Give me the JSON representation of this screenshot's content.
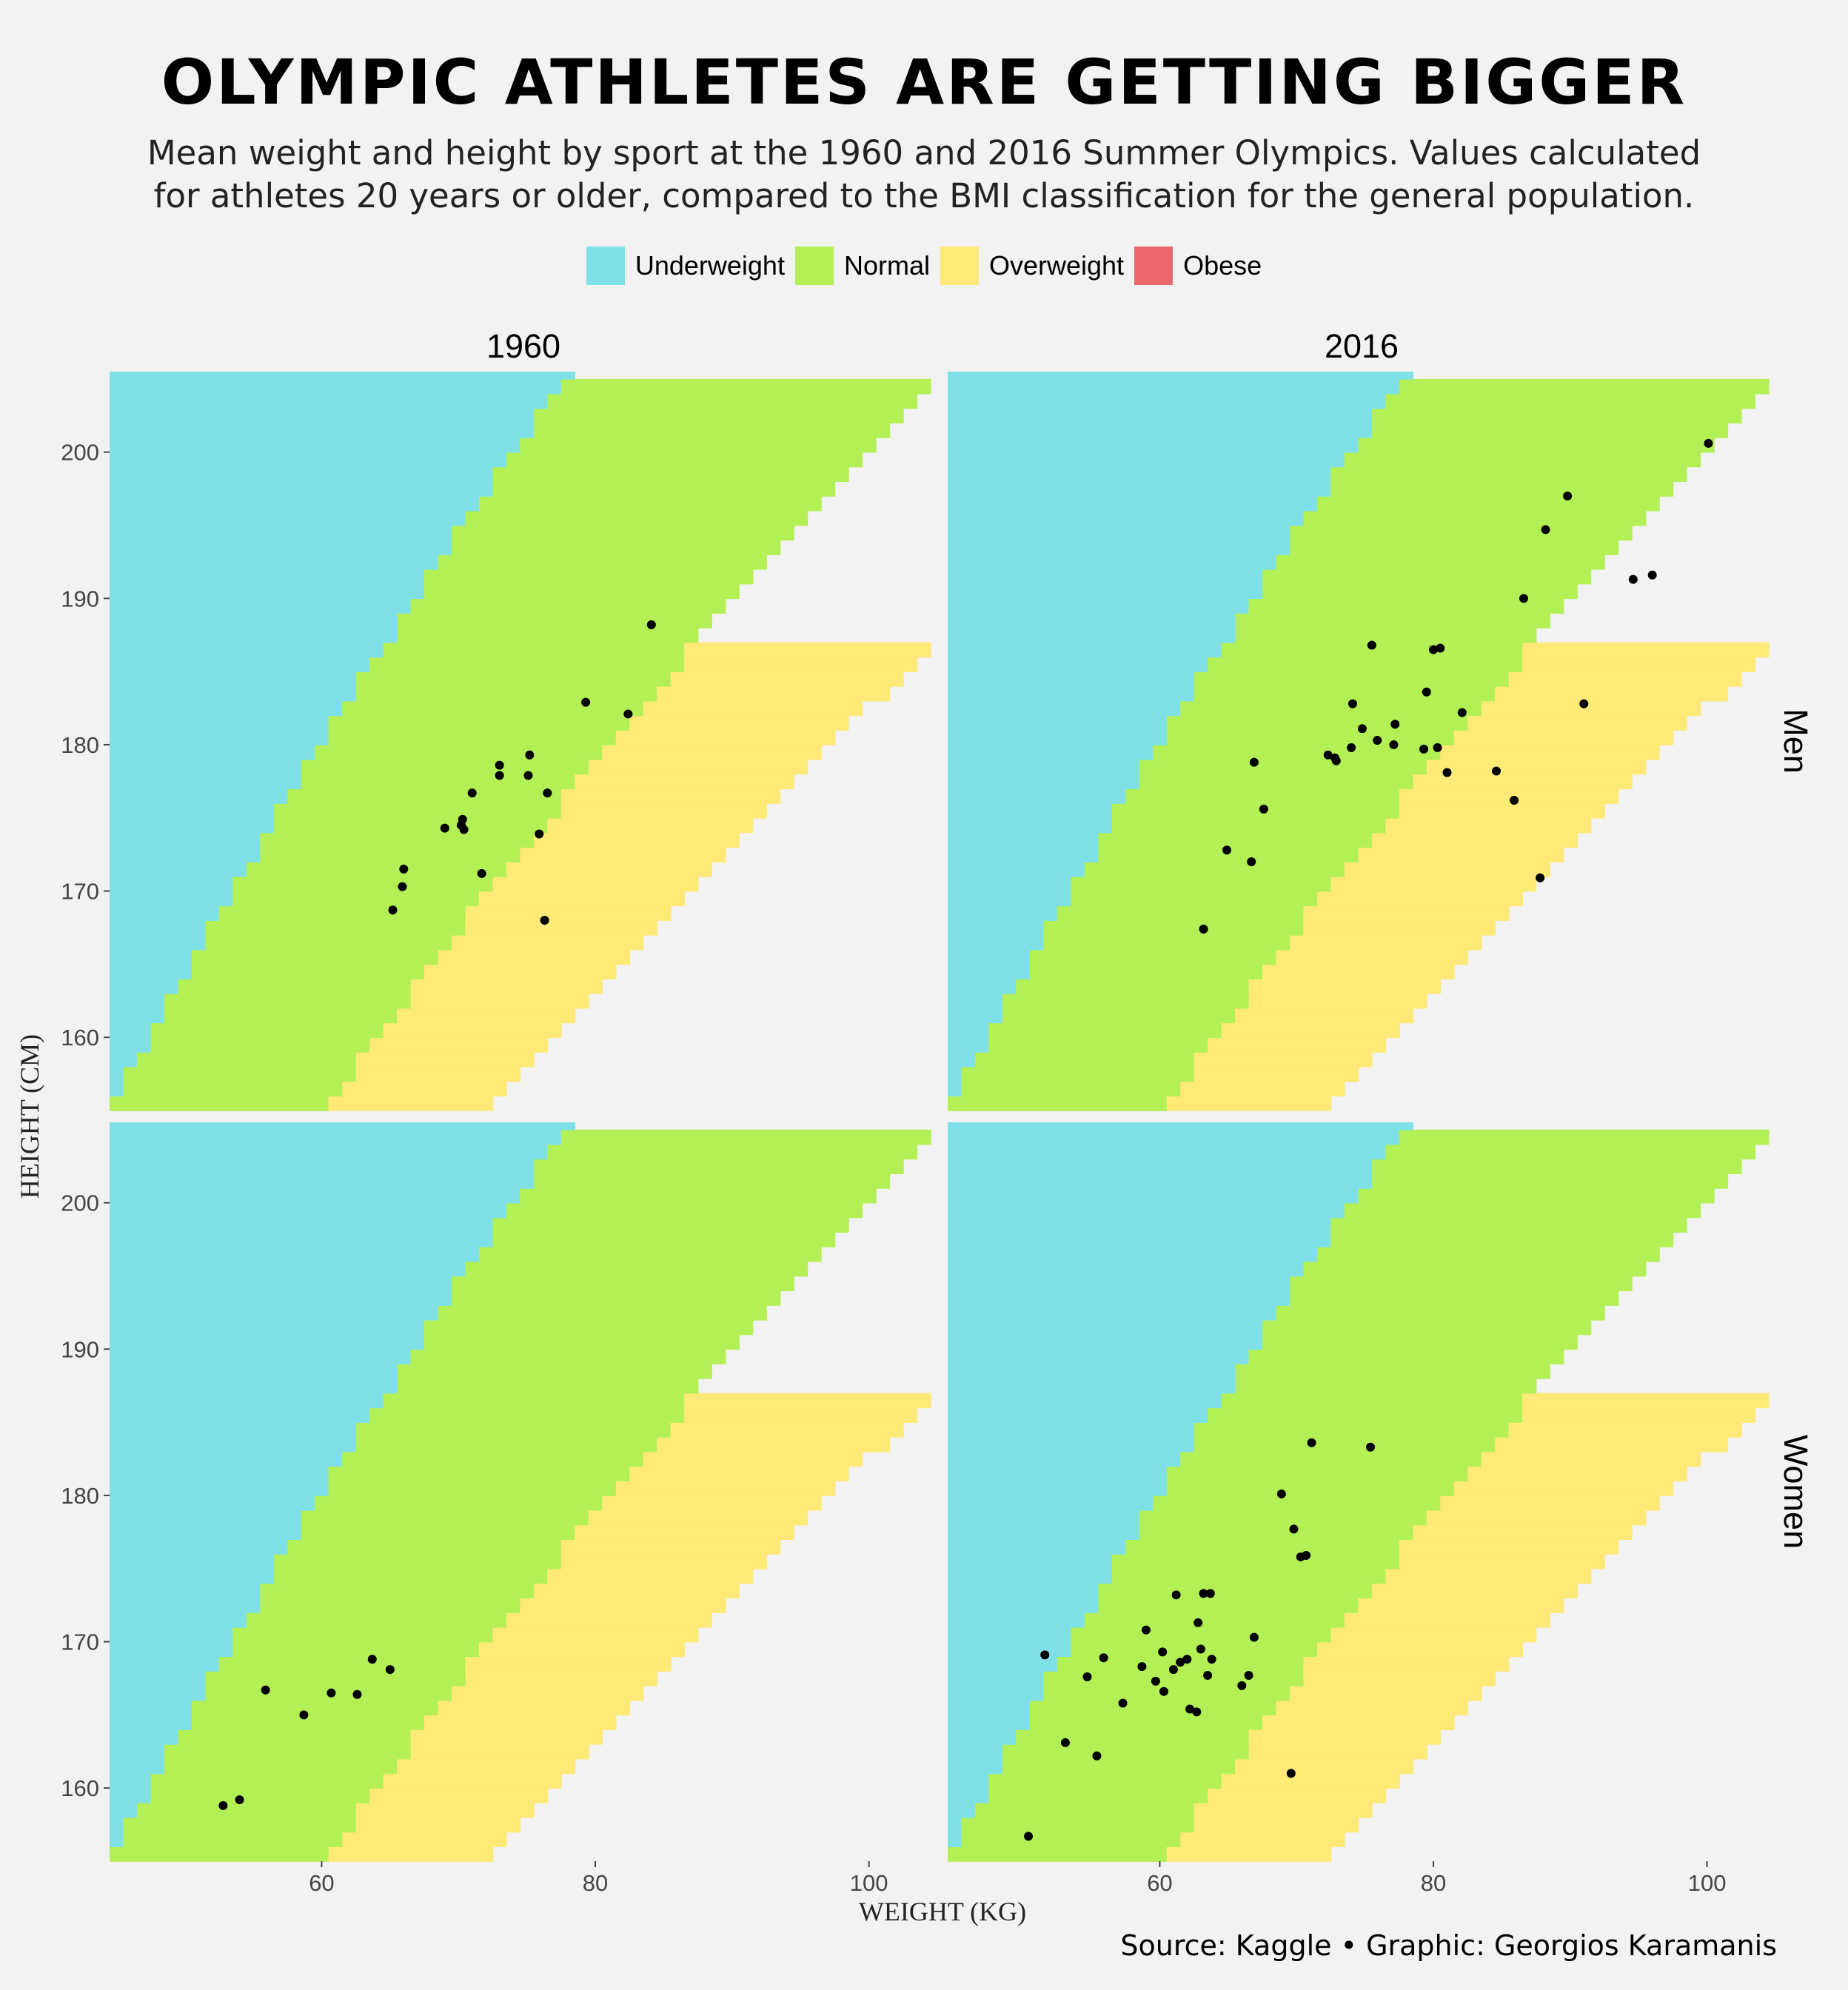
{
  "title": "OLYMPIC ATHLETES ARE GETTING BIGGER",
  "subtitle_line1": "Mean weight and height by sport at the 1960 and 2016 Summer Olympics. Values calculated",
  "subtitle_line2": "for athletes 20 years or older, compared to the BMI classification for the general population.",
  "source": "Source: Kaggle • Graphic: Georgios Karamanis",
  "legend": [
    {
      "label": "Underweight",
      "color": "#80e0e8"
    },
    {
      "label": "Normal",
      "color": "#b2f055"
    },
    {
      "label": "Overweight",
      "color": "#ffe977"
    },
    {
      "label": "Obese",
      "color": "#ea686e"
    }
  ],
  "chart_data": {
    "type": "scatter",
    "xlabel": "WEIGHT (KG)",
    "ylabel": "HEIGHT (CM)",
    "xlim": [
      44.5,
      105
    ],
    "ylim": [
      155,
      205.5
    ],
    "x_ticks": [
      60,
      80,
      100
    ],
    "y_ticks": [
      160,
      170,
      180,
      190,
      200
    ],
    "columns": [
      "1960",
      "2016"
    ],
    "rows": [
      "Men",
      "Women"
    ],
    "background": "BMI classification: Underweight < 18.5, Normal 18.5–25, Overweight 25–30, Obese ≥ 30",
    "bmi_thresholds": [
      18.5,
      25,
      30
    ],
    "panels": [
      {
        "column": "1960",
        "row": "Men",
        "points": [
          [
            65.2,
            168.7
          ],
          [
            65.9,
            170.3
          ],
          [
            66,
            171.5
          ],
          [
            69,
            174.3
          ],
          [
            70.2,
            174.5
          ],
          [
            70.3,
            174.9
          ],
          [
            70.4,
            174.2
          ],
          [
            71,
            176.7
          ],
          [
            71.7,
            171.2
          ],
          [
            73,
            177.9
          ],
          [
            73,
            178.6
          ],
          [
            75.1,
            177.9
          ],
          [
            75.2,
            179.3
          ],
          [
            75.9,
            173.9
          ],
          [
            76.3,
            168
          ],
          [
            76.5,
            176.7
          ],
          [
            79.3,
            182.9
          ],
          [
            82.4,
            182.1
          ],
          [
            84.1,
            188.2
          ]
        ]
      },
      {
        "column": "2016",
        "row": "Men",
        "points": [
          [
            63.2,
            167.4
          ],
          [
            64.9,
            172.8
          ],
          [
            66.7,
            172
          ],
          [
            66.9,
            178.8
          ],
          [
            67.6,
            175.6
          ],
          [
            72.3,
            179.3
          ],
          [
            72.8,
            179.1
          ],
          [
            72.9,
            178.9
          ],
          [
            74,
            179.8
          ],
          [
            74.1,
            182.8
          ],
          [
            74.8,
            181.1
          ],
          [
            75.5,
            186.8
          ],
          [
            75.9,
            180.3
          ],
          [
            77.1,
            180
          ],
          [
            77.2,
            181.4
          ],
          [
            79.3,
            179.7
          ],
          [
            79.5,
            183.6
          ],
          [
            80,
            186.5
          ],
          [
            80.3,
            179.8
          ],
          [
            80.5,
            186.6
          ],
          [
            81,
            178.1
          ],
          [
            82.1,
            182.2
          ],
          [
            84.6,
            178.2
          ],
          [
            85.9,
            176.2
          ],
          [
            86.6,
            190
          ],
          [
            87.8,
            170.9
          ],
          [
            88.2,
            194.7
          ],
          [
            89.8,
            197
          ],
          [
            91,
            182.8
          ],
          [
            94.6,
            191.3
          ],
          [
            96,
            191.6
          ],
          [
            100.1,
            200.6
          ]
        ]
      },
      {
        "column": "1960",
        "row": "Women",
        "points": [
          [
            52.8,
            158.8
          ],
          [
            54,
            159.2
          ],
          [
            55.9,
            166.7
          ],
          [
            58.7,
            165
          ],
          [
            60.7,
            166.5
          ],
          [
            62.6,
            166.4
          ],
          [
            63.7,
            168.8
          ],
          [
            65,
            168.1
          ]
        ]
      },
      {
        "column": "2016",
        "row": "Women",
        "points": [
          [
            50.4,
            156.7
          ],
          [
            51.6,
            169.1
          ],
          [
            53.1,
            163.1
          ],
          [
            54.7,
            167.6
          ],
          [
            55.4,
            162.2
          ],
          [
            55.9,
            168.9
          ],
          [
            57.3,
            165.8
          ],
          [
            58.7,
            168.3
          ],
          [
            59,
            170.8
          ],
          [
            59.7,
            167.3
          ],
          [
            60.2,
            169.3
          ],
          [
            60.3,
            166.6
          ],
          [
            61,
            168.1
          ],
          [
            61.2,
            173.2
          ],
          [
            61.5,
            168.6
          ],
          [
            62,
            168.8
          ],
          [
            62.2,
            165.4
          ],
          [
            62.7,
            165.2
          ],
          [
            62.8,
            171.3
          ],
          [
            63,
            169.5
          ],
          [
            63.2,
            173.3
          ],
          [
            63.5,
            167.7
          ],
          [
            63.7,
            173.3
          ],
          [
            63.8,
            168.8
          ],
          [
            66,
            167
          ],
          [
            66.5,
            167.7
          ],
          [
            66.9,
            170.3
          ],
          [
            68.9,
            180.1
          ],
          [
            69.6,
            161
          ],
          [
            69.8,
            177.7
          ],
          [
            70.3,
            175.8
          ],
          [
            70.7,
            175.9
          ],
          [
            71.1,
            183.6
          ],
          [
            75.4,
            183.3
          ]
        ]
      }
    ]
  }
}
